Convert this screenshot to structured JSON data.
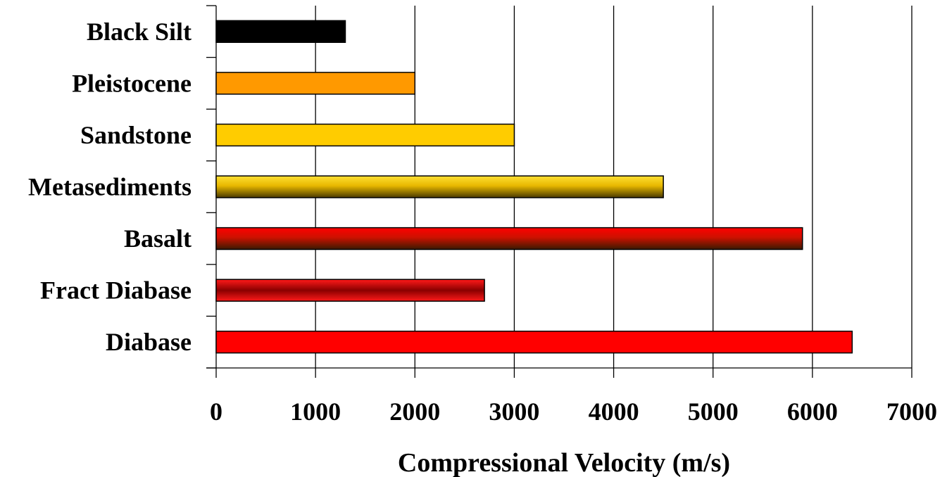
{
  "chart_data": {
    "type": "bar",
    "orientation": "horizontal",
    "categories": [
      "Black Silt",
      "Pleistocene",
      "Sandstone",
      "Metasediments",
      "Basalt",
      "Fract Diabase",
      "Diabase"
    ],
    "values": [
      1300,
      2000,
      3000,
      4500,
      5900,
      2700,
      6400
    ],
    "colors": [
      "#000000",
      "#FF9900",
      "#FFCC00",
      "gradient-gold",
      "gradient-red",
      "gradient-darkred",
      "#FF0000"
    ],
    "xlabel": "Compressional Velocity (m/s)",
    "ylabel": "",
    "title": "",
    "xlim": [
      0,
      7000
    ],
    "xticks": [
      0,
      1000,
      2000,
      3000,
      4000,
      5000,
      6000,
      7000
    ],
    "grid": "vertical",
    "legend": "none"
  }
}
